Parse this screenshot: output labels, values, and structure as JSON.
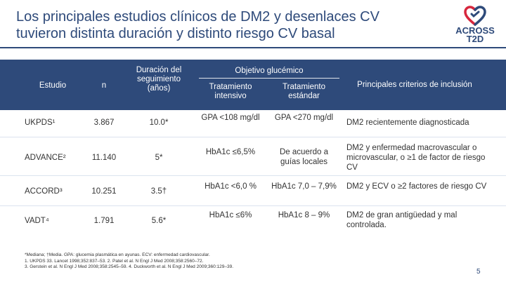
{
  "title": "Los principales estudios clínicos de DM2 y desenlaces CV tuvieron distinta duración y distinto riesgo CV basal",
  "logo": {
    "line1": "ACROSS",
    "line2": "T2D"
  },
  "table": {
    "headers": {
      "estudio": "Estudio",
      "n": "n",
      "duracion": "Duración del seguimiento (años)",
      "objetivo": "Objetivo glucémico",
      "intensivo": "Tratamiento intensivo",
      "estandar": "Tratamiento estándar",
      "criterios": "Principales criterios de inclusión"
    },
    "rows": [
      {
        "estudio": "UKPDS¹",
        "n": "3.867",
        "duracion": "10.0*",
        "intensivo": "GPA <108 mg/dl",
        "estandar": "GPA <270 mg/dl",
        "criterios": "DM2 recientemente diagnosticada"
      },
      {
        "estudio": "ADVANCE²",
        "n": "11.140",
        "duracion": "5*",
        "intensivo": "HbA1c ≤6,5%",
        "estandar": "De acuerdo a guías locales",
        "criterios": "DM2 y enfermedad macrovascular o microvascular, o ≥1 de factor de riesgo CV"
      },
      {
        "estudio": "ACCORD³",
        "n": "10.251",
        "duracion": "3.5†",
        "intensivo": "HbA1c <6,0 %",
        "estandar": "HbA1c 7,0 – 7,9%",
        "criterios": "DM2 y ECV o ≥2 factores de riesgo CV"
      },
      {
        "estudio": "VADT⁴",
        "n": "1.791",
        "duracion": "5.6*",
        "intensivo": "HbA1c ≤6%",
        "estandar": "HbA1c 8 – 9%",
        "criterios": "DM2 de gran antigüedad y mal controlada."
      }
    ]
  },
  "footnotes": {
    "line1": "*Mediana; †Media. GPA: glucemia plasmática en ayunas. ECV: enfermedad cardiovascular.",
    "line2": "1. UKPDS 33. Lancet 1998;352:837–53. 2. Patel et al. N Engl J Med 2008;358:2560–72.",
    "line3": "3. Gerstein et al. N Engl J Med 2008;358:2545–59. 4. Duckworth et al. N Engl J Med 2009;360:129–39."
  },
  "page_number": "5",
  "colors": {
    "primary": "#2e4a7a",
    "accent": "#d7263d",
    "header_text": "#ffffff"
  }
}
